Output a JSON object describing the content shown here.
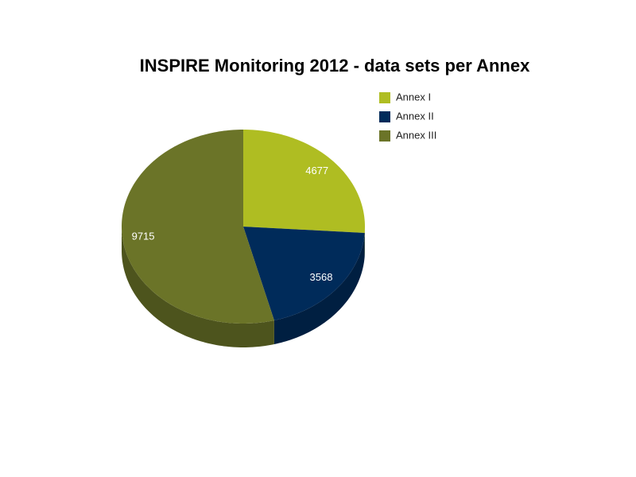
{
  "chart_data": {
    "type": "pie3d",
    "title": "INSPIRE Monitoring 2012 - data sets per Annex",
    "categories": [
      "Annex I",
      "Annex II",
      "Annex III"
    ],
    "values": [
      4677,
      3568,
      9715
    ],
    "colors": [
      "#afbd22",
      "#002b5a",
      "#6b7428"
    ],
    "legend": "top-right"
  }
}
